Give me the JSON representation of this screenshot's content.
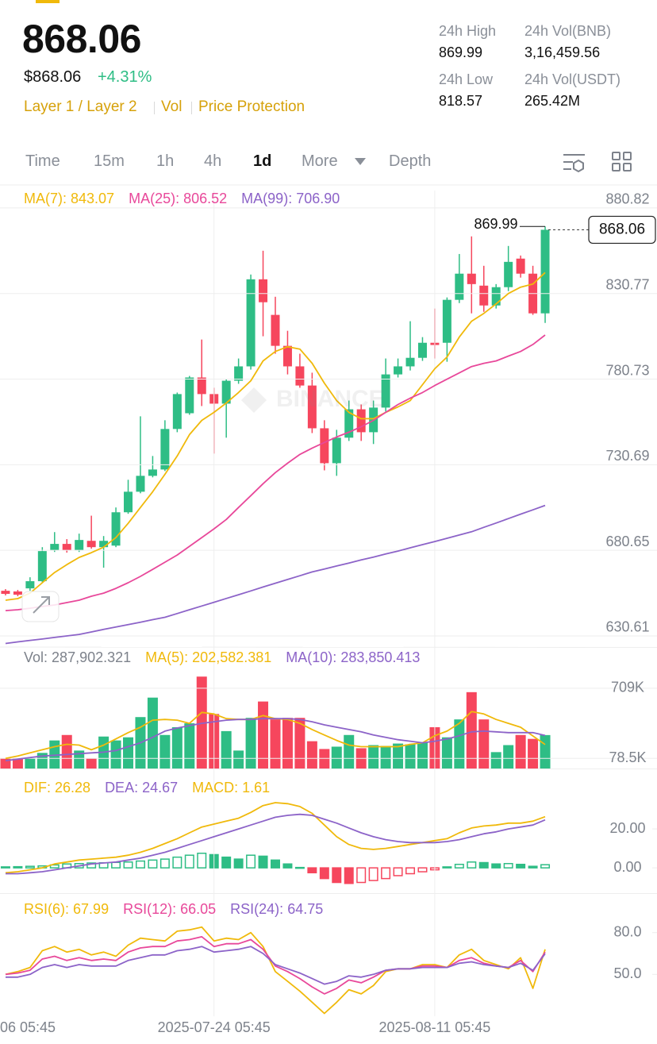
{
  "header": {
    "price": "868.06",
    "fiat_price": "$868.06",
    "change": "+4.31%",
    "tags": [
      "Layer 1 / Layer 2",
      "Vol",
      "Price Protection"
    ],
    "stats": [
      {
        "label": "24h High",
        "value": "869.99"
      },
      {
        "label": "24h Vol(BNB)",
        "value": "3,16,459.56"
      },
      {
        "label": "24h Low",
        "value": "818.57"
      },
      {
        "label": "24h Vol(USDT)",
        "value": "265.42M"
      }
    ]
  },
  "tabs": [
    "Time",
    "15m",
    "1h",
    "4h",
    "1d",
    "More",
    "Depth"
  ],
  "active_tab": 4,
  "watermark": "BINANCE",
  "chart_data": [
    {
      "type": "candlestick",
      "up_color": "#2ebd85",
      "down_color": "#f6465d",
      "open": [
        657.0,
        656.6,
        658.4,
        662.6,
        680.7,
        684.4,
        680.7,
        686.2,
        682.5,
        683.4,
        702.9,
        714.9,
        724.2,
        727.9,
        751.6,
        760.8,
        781.7,
        772.0,
        766.4,
        779.8,
        788.2,
        839.1,
        818.3,
        800.2,
        788.2,
        777.0,
        752.0,
        731.6,
        746.5,
        763.1,
        749.7,
        764.1,
        783.5,
        788.2,
        793.2,
        802.0,
        802.0,
        827.1,
        842.4,
        835.4,
        823.8,
        834.5,
        851.2,
        842.4,
        819.2
      ],
      "high": [
        657.97,
        657.5,
        664.9,
        682.5,
        691.3,
        687.2,
        690.4,
        700.9,
        689.0,
        705.7,
        721.9,
        759.0,
        735.8,
        756.7,
        772.9,
        782.6,
        803.9,
        775.7,
        780.7,
        792.8,
        841.9,
        855.8,
        828.9,
        809.0,
        795.6,
        784.5,
        756.7,
        751.1,
        768.2,
        765.9,
        768.2,
        792.8,
        792.8,
        814.6,
        805.3,
        822.0,
        828.5,
        853.9,
        864.2,
        847.0,
        836.3,
        858.6,
        853.0,
        847.0,
        869.99
      ],
      "low": [
        654.3,
        653.8,
        657.0,
        661.7,
        679.7,
        679.3,
        679.7,
        681.6,
        670.5,
        682.5,
        702.0,
        714.0,
        723.3,
        727.0,
        749.7,
        759.9,
        765.0,
        737.2,
        746.5,
        778.0,
        786.3,
        805.8,
        795.6,
        783.5,
        775.7,
        749.2,
        727.4,
        724.2,
        744.6,
        744.6,
        742.8,
        761.8,
        781.7,
        785.8,
        791.4,
        792.8,
        790.9,
        825.2,
        819.2,
        820.1,
        822.0,
        832.2,
        840.1,
        818.3,
        813.6
      ],
      "close": [
        655.2,
        654.7,
        662.6,
        680.2,
        684.4,
        680.7,
        686.7,
        682.5,
        686.2,
        702.9,
        714.9,
        724.2,
        727.9,
        751.6,
        772.0,
        781.7,
        772.0,
        766.4,
        779.8,
        788.2,
        839.1,
        825.7,
        800.2,
        788.2,
        777.0,
        752.0,
        731.6,
        746.5,
        763.1,
        749.7,
        764.1,
        783.5,
        788.2,
        793.2,
        802.0,
        800.7,
        827.1,
        842.4,
        836.3,
        823.8,
        834.5,
        849.3,
        842.4,
        819.2,
        868.06
      ],
      "series": [
        {
          "name": "MA(7)",
          "color": "#f0b90b",
          "values": [
            651.5,
            652.4,
            655.6,
            661.7,
            667.7,
            672.3,
            676.5,
            679.3,
            682.5,
            688.1,
            696.4,
            705.7,
            714.9,
            725.1,
            735.8,
            748.3,
            756.6,
            761.3,
            766.8,
            772.9,
            779.8,
            791.4,
            796.9,
            799.7,
            798.3,
            790.0,
            778.4,
            768.2,
            761.3,
            757.6,
            757.6,
            761.3,
            764.5,
            768.2,
            777.5,
            786.8,
            793.7,
            805.3,
            814.6,
            819.2,
            824.7,
            830.8,
            834.5,
            836.3,
            843.07
          ]
        },
        {
          "name": "MA(25)",
          "color": "#e8489a",
          "values": [
            645.4,
            645.9,
            646.8,
            647.8,
            648.7,
            650.1,
            651.5,
            653.8,
            655.6,
            658.4,
            661.7,
            665.4,
            669.5,
            673.7,
            677.9,
            683.0,
            688.1,
            693.2,
            698.7,
            705.7,
            712.6,
            719.6,
            726.1,
            731.6,
            736.7,
            740.4,
            743.7,
            746.9,
            749.7,
            752.9,
            756.6,
            761.3,
            765.9,
            769.6,
            772.9,
            777.0,
            780.7,
            784.4,
            788.1,
            790.0,
            791.4,
            794.2,
            796.9,
            801.0,
            806.52
          ]
        },
        {
          "name": "MA(99)",
          "color": "#8c63c8",
          "values": [
            626.2,
            627.1,
            628.0,
            628.8,
            629.7,
            630.6,
            631.5,
            632.9,
            634.4,
            635.8,
            637.2,
            638.6,
            640.1,
            641.5,
            643.7,
            645.9,
            648.1,
            650.3,
            652.5,
            654.7,
            656.9,
            659.2,
            661.4,
            663.6,
            665.8,
            668.0,
            669.7,
            671.5,
            673.2,
            675.0,
            676.7,
            678.5,
            680.2,
            682.1,
            684.0,
            685.8,
            687.7,
            689.6,
            691.5,
            694.1,
            696.6,
            699.2,
            701.8,
            704.3,
            706.9
          ],
          "value_labels": [
            null,
            null,
            null,
            null,
            null,
            null,
            null,
            null,
            null,
            null,
            null,
            null,
            null,
            null,
            null,
            null,
            null,
            null,
            null,
            null,
            null,
            null,
            null,
            null,
            null,
            null,
            null,
            null,
            null,
            null,
            null,
            null,
            null,
            null,
            null,
            null,
            null,
            null,
            null,
            null,
            null,
            null,
            null,
            null,
            "706.90"
          ]
        }
      ],
      "xlim": [
        -0.45,
        53.12
      ],
      "ylim": [
        624.1,
        891.0
      ],
      "yticks": [
        880.82,
        830.77,
        780.73,
        730.69,
        680.65,
        630.61
      ],
      "grid": true
    },
    {
      "type": "bar",
      "name": "Vol",
      "values": [
        78500,
        78500,
        78500,
        127500,
        239600,
        288700,
        148600,
        78500,
        274700,
        239600,
        267700,
        449800,
        625000,
        288700,
        358700,
        393800,
        814100,
        477800,
        323700,
        148600,
        442800,
        589900,
        428800,
        442800,
        442800,
        232600,
        162600,
        183600,
        288700,
        169600,
        197600,
        190600,
        211600,
        204600,
        218600,
        358700,
        267700,
        428800,
        674000,
        428800,
        134500,
        197600,
        288700,
        253600,
        287902.321
      ],
      "value_labels": [
        null,
        null,
        null,
        null,
        null,
        null,
        null,
        null,
        null,
        null,
        null,
        null,
        null,
        null,
        null,
        null,
        null,
        null,
        null,
        null,
        null,
        null,
        null,
        null,
        null,
        null,
        null,
        null,
        null,
        null,
        null,
        null,
        null,
        null,
        null,
        null,
        null,
        null,
        null,
        null,
        null,
        null,
        null,
        null,
        "287,902.321"
      ],
      "series": [
        {
          "name": "MA(5)",
          "color": "#f0b90b",
          "values": [
            78500,
            99500,
            127500,
            155600,
            183600,
            204600,
            197600,
            155600,
            197600,
            253700,
            309700,
            358700,
            421800,
            428800,
            421800,
            393800,
            491900,
            477800,
            435800,
            428800,
            428800,
            463800,
            435800,
            428800,
            393800,
            337700,
            288700,
            239600,
            197600,
            183600,
            183600,
            183600,
            183600,
            204600,
            218600,
            281700,
            323700,
            393800,
            498900,
            477800,
            428800,
            393800,
            358700,
            280000,
            202582.381
          ],
          "value_labels": [
            null,
            null,
            null,
            null,
            null,
            null,
            null,
            null,
            null,
            null,
            null,
            null,
            null,
            null,
            null,
            null,
            null,
            null,
            null,
            null,
            null,
            null,
            null,
            null,
            null,
            null,
            null,
            null,
            null,
            null,
            null,
            null,
            null,
            null,
            null,
            null,
            null,
            null,
            null,
            null,
            null,
            null,
            null,
            null,
            "202,582.381"
          ]
        },
        {
          "name": "MA(10)",
          "color": "#8c63c8",
          "values": [
            57500,
            71500,
            85500,
            99500,
            106500,
            113500,
            120500,
            127500,
            134500,
            148600,
            183600,
            218600,
            267700,
            323700,
            351700,
            372800,
            393800,
            407800,
            421800,
            428800,
            428800,
            435800,
            435800,
            435800,
            428800,
            407800,
            379800,
            358700,
            337700,
            316700,
            288700,
            267700,
            246600,
            232600,
            218600,
            232600,
            253700,
            281700,
            316700,
            323700,
            316700,
            309700,
            309700,
            309700,
            283850.413
          ],
          "value_labels": [
            null,
            null,
            null,
            null,
            null,
            null,
            null,
            null,
            null,
            null,
            null,
            null,
            null,
            null,
            null,
            null,
            null,
            null,
            null,
            null,
            null,
            null,
            null,
            null,
            null,
            null,
            null,
            null,
            null,
            null,
            null,
            null,
            null,
            null,
            null,
            null,
            null,
            null,
            null,
            null,
            null,
            null,
            null,
            null,
            "283,850.413"
          ]
        }
      ],
      "xlim": [
        -0.45,
        53.12
      ],
      "ylim": [
        -13000,
        830000
      ],
      "yticks": [
        {
          "value": 709000,
          "label": "709K"
        },
        {
          "value": 78500,
          "label": "78.5K"
        }
      ],
      "grid": true
    },
    {
      "type": "macd",
      "series": [
        {
          "name": "DIF",
          "color": "#f0b90b",
          "values": [
            -2.5,
            -2,
            -1,
            0,
            2,
            3,
            4,
            4.5,
            5,
            5.5,
            6.5,
            8,
            10,
            12.5,
            15,
            18,
            21,
            22.5,
            24,
            25.5,
            28.5,
            32,
            33.5,
            33,
            31.5,
            28,
            22,
            16,
            12,
            10,
            9.5,
            10,
            11,
            12,
            13,
            14,
            15,
            18,
            20.5,
            21.5,
            22,
            23,
            23,
            24,
            26.28
          ]
        },
        {
          "name": "DEA",
          "color": "#8c63c8",
          "values": [
            -3,
            -3,
            -2.5,
            -2,
            -1,
            0,
            1,
            2,
            2.5,
            3,
            4,
            5,
            6.5,
            8,
            10,
            12,
            14,
            16,
            18,
            20,
            22,
            24,
            26,
            27,
            27.5,
            27,
            25,
            23,
            20.5,
            18,
            16,
            14.5,
            13.5,
            13,
            13,
            13,
            13.5,
            14.5,
            16,
            17.5,
            18.5,
            20,
            21,
            22,
            24.67
          ]
        }
      ],
      "histogram": {
        "name": "MACD",
        "up_color": "#2ebd85",
        "down_color": "#f6465d",
        "values": [
          0.5,
          0.6,
          0.8,
          1.0,
          1.5,
          2.0,
          2.2,
          2.5,
          2.6,
          2.8,
          3.0,
          3.5,
          4.0,
          4.5,
          5.5,
          6.5,
          7.5,
          6.8,
          5.5,
          4.5,
          6.5,
          6.0,
          4.0,
          2.0,
          0.2,
          -2.5,
          -5.5,
          -7.5,
          -8.0,
          -7.5,
          -6.5,
          -5.5,
          -4.0,
          -3.0,
          -2.0,
          -1.0,
          0.5,
          1.8,
          3.0,
          2.7,
          2.0,
          2.2,
          1.8,
          0.8,
          1.61
        ]
      },
      "xlim": [
        -0.45,
        53.12
      ],
      "ylim": [
        -13,
        38
      ],
      "yticks": [
        {
          "value": 20,
          "label": "20.00"
        },
        {
          "value": 0,
          "label": "0.00"
        }
      ],
      "grid": false
    },
    {
      "type": "line",
      "series": [
        {
          "name": "RSI(6)",
          "color": "#f0b90b",
          "values": [
            50,
            52,
            55,
            67,
            70,
            66,
            68,
            64,
            66,
            63,
            71,
            76,
            75,
            74,
            81,
            82,
            84,
            74,
            76,
            75,
            80,
            70,
            52,
            45,
            38,
            30,
            22,
            30,
            39,
            36,
            42,
            52,
            54,
            54,
            57,
            57,
            55,
            64,
            68,
            60,
            57,
            54,
            62,
            40,
            67.99
          ]
        },
        {
          "name": "RSI(12)",
          "color": "#e8489a",
          "values": [
            50,
            51,
            53,
            61,
            63,
            60,
            62,
            60,
            61,
            60,
            66,
            69,
            70,
            70,
            74,
            75,
            77,
            70,
            72,
            72,
            75,
            68,
            56,
            52,
            47,
            41,
            36,
            40,
            46,
            44,
            48,
            53,
            54,
            54,
            56,
            56,
            55,
            60,
            62,
            58,
            56,
            55,
            60,
            52,
            66.05
          ]
        },
        {
          "name": "RSI(24)",
          "color": "#8c63c8",
          "values": [
            48,
            48,
            50,
            55,
            57,
            55,
            57,
            56,
            56,
            56,
            60,
            62,
            64,
            64,
            67,
            68,
            70,
            66,
            67,
            68,
            70,
            65,
            57,
            54,
            51,
            47,
            43,
            45,
            49,
            48,
            50,
            53,
            54,
            54,
            55,
            55,
            55,
            58,
            59,
            57,
            56,
            55,
            58,
            53,
            64.75
          ]
        }
      ],
      "xlim": [
        -0.45,
        53.12
      ],
      "ylim": [
        20,
        102.6
      ],
      "yticks": [
        {
          "value": 80,
          "label": "80.0"
        },
        {
          "value": 50,
          "label": "50.0"
        }
      ],
      "grid": false,
      "xticks": [
        {
          "value": -1,
          "label": "06 05:45"
        },
        {
          "value": 17,
          "label": "2025-07-24 05:45"
        },
        {
          "value": 35,
          "label": "2025-08-11 05:45"
        }
      ]
    }
  ]
}
